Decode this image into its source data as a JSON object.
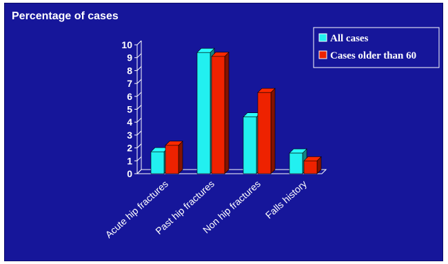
{
  "chart_data": {
    "type": "bar",
    "title": "Percentage of cases",
    "categories": [
      "Acute hip fractures",
      "Past hip fractures",
      "Non hip fractures",
      "Falls history"
    ],
    "series": [
      {
        "name": "All cases",
        "values": [
          1.7,
          9.4,
          4.4,
          1.6
        ],
        "color": "#22f0f0"
      },
      {
        "name": "Cases older than 60",
        "values": [
          2.2,
          9.1,
          6.3,
          1.0
        ],
        "color": "#ee2200"
      }
    ],
    "yticks": [
      "0",
      "1",
      "2",
      "3",
      "4",
      "5",
      "6",
      "7",
      "8",
      "9",
      "10"
    ],
    "ylim": [
      0,
      10
    ],
    "xlabel": "",
    "ylabel": "",
    "grid": false,
    "legend": "top-right",
    "background_color": "#16169a"
  }
}
